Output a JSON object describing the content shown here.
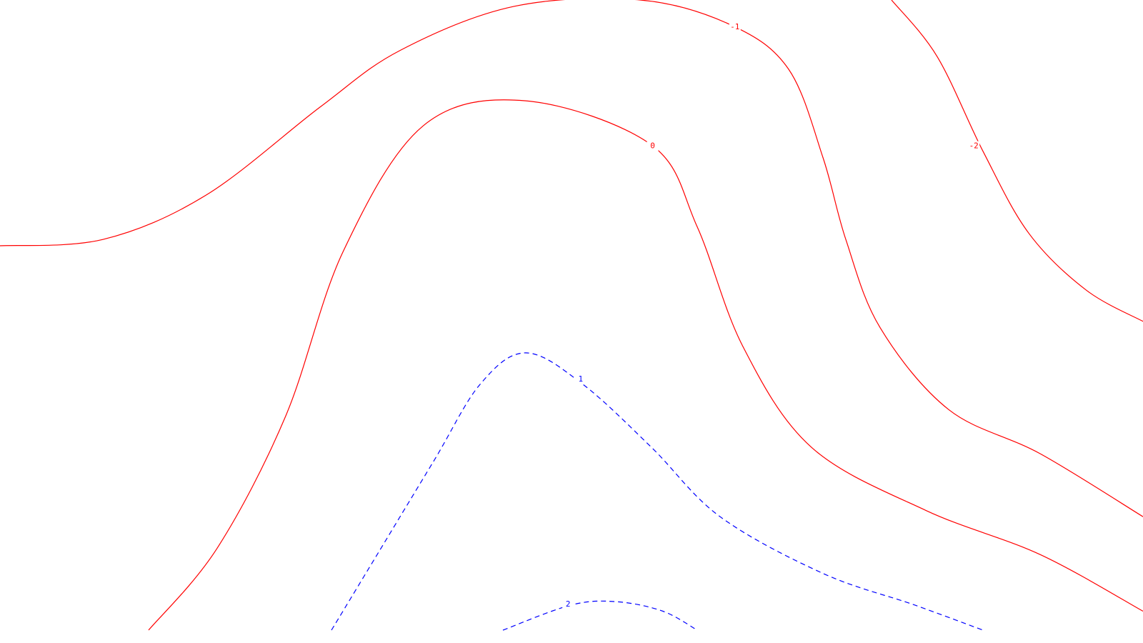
{
  "chart_data": {
    "type": "contour",
    "title": "",
    "xlabel": "",
    "ylabel": "",
    "grid": false,
    "legend": "none",
    "x_range": [
      0,
      1
    ],
    "y_range": [
      0,
      1
    ],
    "levels": [
      {
        "value": -2,
        "label": "-2",
        "color": "#ff0000",
        "style": "solid",
        "points": [
          [
            0.78,
            1.0
          ],
          [
            0.82,
            0.91
          ],
          [
            0.86,
            0.76
          ],
          [
            0.9,
            0.63
          ],
          [
            0.95,
            0.54
          ],
          [
            1.0,
            0.49
          ]
        ]
      },
      {
        "value": -1,
        "label": "-1",
        "color": "#ff0000",
        "style": "solid",
        "points": [
          [
            0.0,
            0.61
          ],
          [
            0.09,
            0.62
          ],
          [
            0.18,
            0.69
          ],
          [
            0.28,
            0.83
          ],
          [
            0.35,
            0.92
          ],
          [
            0.45,
            0.99
          ],
          [
            0.56,
            1.0
          ],
          [
            0.64,
            0.96
          ],
          [
            0.69,
            0.89
          ],
          [
            0.72,
            0.75
          ],
          [
            0.74,
            0.62
          ],
          [
            0.77,
            0.48
          ],
          [
            0.83,
            0.35
          ],
          [
            0.91,
            0.28
          ],
          [
            1.0,
            0.18
          ]
        ]
      },
      {
        "value": 0,
        "label": "0",
        "color": "#ff0000",
        "style": "solid",
        "points": [
          [
            0.13,
            0.0
          ],
          [
            0.19,
            0.13
          ],
          [
            0.25,
            0.34
          ],
          [
            0.3,
            0.6
          ],
          [
            0.37,
            0.8
          ],
          [
            0.46,
            0.84
          ],
          [
            0.57,
            0.77
          ],
          [
            0.61,
            0.64
          ],
          [
            0.65,
            0.45
          ],
          [
            0.71,
            0.29
          ],
          [
            0.81,
            0.19
          ],
          [
            0.91,
            0.12
          ],
          [
            1.0,
            0.03
          ]
        ]
      },
      {
        "value": 1,
        "label": "1",
        "color": "#0000ff",
        "style": "dashed",
        "points": [
          [
            0.29,
            0.0
          ],
          [
            0.33,
            0.12
          ],
          [
            0.38,
            0.27
          ],
          [
            0.42,
            0.39
          ],
          [
            0.46,
            0.44
          ],
          [
            0.51,
            0.39
          ],
          [
            0.57,
            0.29
          ],
          [
            0.63,
            0.18
          ],
          [
            0.72,
            0.09
          ],
          [
            0.8,
            0.04
          ],
          [
            0.86,
            0.0
          ]
        ]
      },
      {
        "value": 2,
        "label": "2",
        "color": "#0000ff",
        "style": "dashed",
        "points": [
          [
            0.44,
            0.0
          ],
          [
            0.5,
            0.04
          ],
          [
            0.54,
            0.045
          ],
          [
            0.58,
            0.03
          ],
          [
            0.61,
            0.0
          ]
        ]
      }
    ],
    "labels": [
      {
        "text": "-2",
        "level": -2,
        "x": 0.852,
        "y": 0.768
      },
      {
        "text": "-1",
        "level": -1,
        "x": 0.643,
        "y": 0.957
      },
      {
        "text": "0",
        "level": 0,
        "x": 0.571,
        "y": 0.768
      },
      {
        "text": "1",
        "level": 1,
        "x": 0.508,
        "y": 0.398
      },
      {
        "text": "2",
        "level": 2,
        "x": 0.497,
        "y": 0.041
      }
    ]
  }
}
